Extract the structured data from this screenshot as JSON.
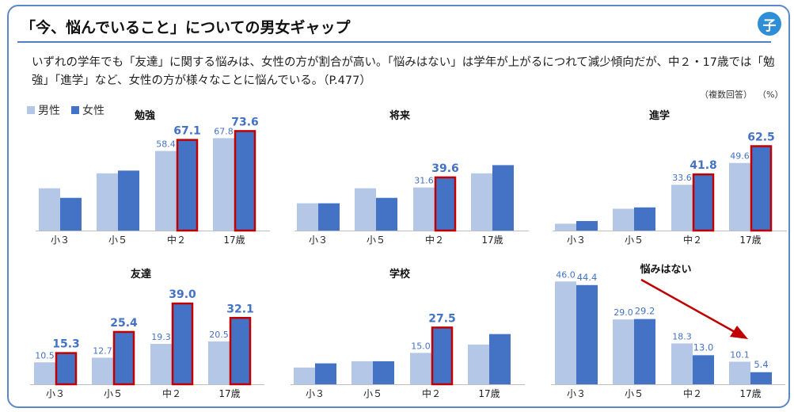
{
  "header": {
    "title": "「今、悩んでいること」についての男女ギャップ",
    "badge": "子",
    "description": "いずれの学年でも「友達」に関する悩みは、女性の方が割合が高い。「悩みはない」は学年が上がるにつれて減少傾向だが、中２・17歳では「勉強」「進学」など、女性の方が様々なことに悩んでいる。（P.477）",
    "note_multi": "（複数回答）",
    "note_unit": "（%）"
  },
  "legend": {
    "male": "男性",
    "female": "女性"
  },
  "colors": {
    "male": "#b4c7e7",
    "female": "#4472c4",
    "highlight": "#c00000",
    "label": "#4472c4",
    "arrow": "#c00000"
  },
  "chart_data": [
    {
      "type": "bar",
      "title": "勉強",
      "categories": [
        "小３",
        "小５",
        "中２",
        "17歳"
      ],
      "series": [
        {
          "name": "男性",
          "values": [
            31,
            42,
            58.4,
            67.8
          ]
        },
        {
          "name": "女性",
          "values": [
            24,
            44,
            67.1,
            73.6
          ]
        }
      ],
      "labels": {
        "male": [
          "",
          "",
          "58.4",
          "67.8"
        ],
        "female": [
          "",
          "",
          "67.1",
          "73.6"
        ]
      },
      "highlight": [
        false,
        false,
        true,
        true
      ],
      "ylim": [
        0,
        80
      ]
    },
    {
      "type": "bar",
      "title": "将来",
      "categories": [
        "小３",
        "小５",
        "中２",
        "17歳"
      ],
      "series": [
        {
          "name": "男性",
          "values": [
            20,
            31,
            31.6,
            42
          ]
        },
        {
          "name": "女性",
          "values": [
            20,
            24,
            39.6,
            48
          ]
        }
      ],
      "labels": {
        "male": [
          "",
          "",
          "31.6",
          ""
        ],
        "female": [
          "",
          "",
          "39.6",
          ""
        ]
      },
      "highlight": [
        false,
        false,
        true,
        false
      ],
      "ylim": [
        0,
        80
      ]
    },
    {
      "type": "bar",
      "title": "進学",
      "categories": [
        "小３",
        "小５",
        "中２",
        "17歳"
      ],
      "series": [
        {
          "name": "男性",
          "values": [
            5,
            16,
            33.6,
            49.6
          ]
        },
        {
          "name": "女性",
          "values": [
            7,
            17,
            41.8,
            62.5
          ]
        }
      ],
      "labels": {
        "male": [
          "",
          "",
          "33.6",
          "49.6"
        ],
        "female": [
          "",
          "",
          "41.8",
          "62.5"
        ]
      },
      "highlight": [
        false,
        false,
        true,
        true
      ],
      "ylim": [
        0,
        80
      ]
    },
    {
      "type": "bar",
      "title": "友達",
      "categories": [
        "小３",
        "小５",
        "中２",
        "17歳"
      ],
      "series": [
        {
          "name": "男性",
          "values": [
            10.5,
            12.7,
            19.3,
            20.5
          ]
        },
        {
          "name": "女性",
          "values": [
            15.3,
            25.4,
            39.0,
            32.1
          ]
        }
      ],
      "labels": {
        "male": [
          "10.5",
          "12.7",
          "19.3",
          "20.5"
        ],
        "female": [
          "15.3",
          "25.4",
          "39.0",
          "32.1"
        ]
      },
      "highlight": [
        true,
        true,
        true,
        true
      ],
      "ylim": [
        0,
        45
      ]
    },
    {
      "type": "bar",
      "title": "学校",
      "categories": [
        "小３",
        "小５",
        "中２",
        "17歳"
      ],
      "series": [
        {
          "name": "男性",
          "values": [
            8,
            11,
            15.0,
            19
          ]
        },
        {
          "name": "女性",
          "values": [
            10,
            11,
            27.5,
            24
          ]
        }
      ],
      "labels": {
        "male": [
          "",
          "",
          "15.0",
          ""
        ],
        "female": [
          "",
          "",
          "27.5",
          ""
        ]
      },
      "highlight": [
        false,
        false,
        true,
        false
      ],
      "ylim": [
        0,
        45
      ]
    },
    {
      "type": "bar",
      "title": "悩みはない",
      "categories": [
        "小３",
        "小５",
        "中２",
        "17歳"
      ],
      "series": [
        {
          "name": "男性",
          "values": [
            46.0,
            29.0,
            18.3,
            10.1
          ]
        },
        {
          "name": "女性",
          "values": [
            44.4,
            29.2,
            13.0,
            5.4
          ]
        }
      ],
      "labels": {
        "male": [
          "46.0",
          "29.0",
          "18.3",
          "10.1"
        ],
        "female": [
          "44.4",
          "29.2",
          "13.0",
          "5.4"
        ]
      },
      "highlight": [
        false,
        false,
        false,
        false
      ],
      "ylim": [
        0,
        50
      ],
      "trend_arrow": true
    }
  ]
}
